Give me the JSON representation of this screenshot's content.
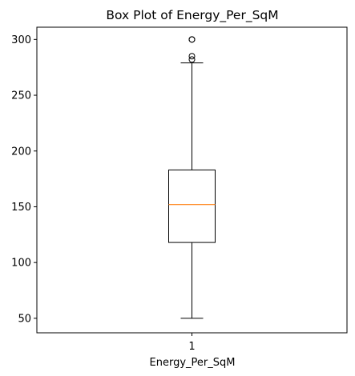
{
  "chart_data": {
    "type": "box",
    "title": "Box Plot of Energy_Per_SqM",
    "xlabel": "Energy_Per_SqM",
    "ylabel": "",
    "categories": [
      "1"
    ],
    "ylim": [
      37,
      311
    ],
    "yticks": [
      50,
      100,
      150,
      200,
      250,
      300
    ],
    "grid": false,
    "series": [
      {
        "category": "1",
        "whisker_low": 50,
        "q1": 118,
        "median": 152,
        "q3": 183,
        "whisker_high": 279,
        "outliers": [
          282,
          285,
          300,
          300
        ]
      }
    ],
    "colors": {
      "box": "#000000",
      "median": "#ff7f0e",
      "outlier": "#000000"
    }
  }
}
